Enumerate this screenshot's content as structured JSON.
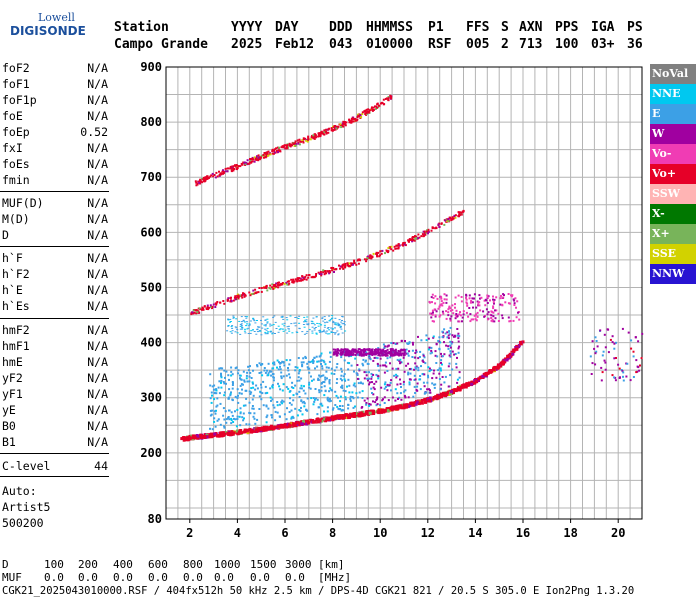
{
  "logo": {
    "line1": "Lowell",
    "line2": "DIGISONDE"
  },
  "header": {
    "labels": [
      "Station",
      "YYYY",
      "DAY",
      "DDD",
      "HHMMSS",
      "P1",
      "FFS",
      "S",
      "AXN",
      "PPS",
      "IGA",
      "PS"
    ],
    "values": [
      "Campo Grande",
      "2025",
      "Feb12",
      "043",
      "010000",
      "RSF",
      "005",
      "2",
      "713",
      "100",
      "03+",
      "36"
    ]
  },
  "params": [
    {
      "name": "foF2",
      "value": "N/A"
    },
    {
      "name": "foF1",
      "value": "N/A"
    },
    {
      "name": "foF1p",
      "value": "N/A"
    },
    {
      "name": "foE",
      "value": "N/A"
    },
    {
      "name": "foEp",
      "value": "0.52"
    },
    {
      "name": "fxI",
      "value": "N/A"
    },
    {
      "name": "foEs",
      "value": "N/A"
    },
    {
      "name": "fmin",
      "value": "N/A"
    },
    {
      "name": "MUF(D)",
      "value": "N/A"
    },
    {
      "name": "M(D)",
      "value": "N/A"
    },
    {
      "name": "D",
      "value": "N/A"
    },
    {
      "name": "h`F",
      "value": "N/A"
    },
    {
      "name": "h`F2",
      "value": "N/A"
    },
    {
      "name": "h`E",
      "value": "N/A"
    },
    {
      "name": "h`Es",
      "value": "N/A"
    },
    {
      "name": "hmF2",
      "value": "N/A"
    },
    {
      "name": "hmF1",
      "value": "N/A"
    },
    {
      "name": "hmE",
      "value": "N/A"
    },
    {
      "name": "yF2",
      "value": "N/A"
    },
    {
      "name": "yF1",
      "value": "N/A"
    },
    {
      "name": "yE",
      "value": "N/A"
    },
    {
      "name": "B0",
      "value": "N/A"
    },
    {
      "name": "B1",
      "value": "N/A"
    },
    {
      "name": "C-level",
      "value": "44"
    }
  ],
  "auto_lines": [
    "Auto:",
    "Artist5",
    "500200"
  ],
  "legend": [
    {
      "label": "NoVal",
      "bg": "#808080",
      "fg": "#ffffff"
    },
    {
      "label": "NNE",
      "bg": "#00c8f0",
      "fg": "#ffffff"
    },
    {
      "label": "E",
      "bg": "#3ca0e6",
      "fg": "#ffffff"
    },
    {
      "label": "W",
      "bg": "#a000a0",
      "fg": "#ffffff"
    },
    {
      "label": "Vo-",
      "bg": "#f03cb4",
      "fg": "#ffffff"
    },
    {
      "label": "Vo+",
      "bg": "#e60028",
      "fg": "#ffffff"
    },
    {
      "label": "SSW",
      "bg": "#ffb4b4",
      "fg": "#ffffff"
    },
    {
      "label": "X-",
      "bg": "#007800",
      "fg": "#ffffff"
    },
    {
      "label": "X+",
      "bg": "#78b45a",
      "fg": "#ffffff"
    },
    {
      "label": "SSE",
      "bg": "#d2d200",
      "fg": "#ffffff"
    },
    {
      "label": "NNW",
      "bg": "#2814d2",
      "fg": "#ffffff"
    }
  ],
  "footer": {
    "d_label": "D",
    "d_values": [
      "100",
      "200",
      "400",
      "600",
      "800",
      "1000",
      "1500",
      "3000",
      "[km]"
    ],
    "muf_label": "MUF",
    "muf_values": [
      "0.0",
      "0.0",
      "0.0",
      "0.0",
      "0.0",
      "0.0",
      "0.0",
      "0.0",
      "[MHz]"
    ],
    "info": "CGK21_2025043010000.RSF / 404fx512h 50 kHz 2.5 km / DPS-4D CGK21 821 / 20.5 S 305.0 E Ion2Png 1.3.20"
  },
  "chart_data": {
    "type": "scatter",
    "xlim": [
      1.0,
      21.0
    ],
    "ylim": [
      80,
      900
    ],
    "x_ticks": [
      2,
      4,
      6,
      8,
      10,
      12,
      14,
      16,
      18,
      20
    ],
    "y_ticks": [
      80,
      200,
      300,
      400,
      500,
      600,
      700,
      800,
      900
    ],
    "grid": true,
    "legend_position": "right",
    "traces": [
      {
        "name": "F-trace (O)",
        "color": "#e60028",
        "points": [
          [
            1.6,
            228
          ],
          [
            2,
            230
          ],
          [
            3,
            235
          ],
          [
            4,
            240
          ],
          [
            5,
            246
          ],
          [
            6,
            252
          ],
          [
            7,
            259
          ],
          [
            8,
            266
          ],
          [
            9,
            272
          ],
          [
            10,
            279
          ],
          [
            11,
            288
          ],
          [
            12,
            299
          ],
          [
            13,
            314
          ],
          [
            14,
            334
          ],
          [
            15,
            362
          ],
          [
            15.5,
            384
          ],
          [
            16,
            410
          ]
        ]
      },
      {
        "name": "2-hop trace",
        "color": "#e60028",
        "points": [
          [
            2,
            455
          ],
          [
            3,
            470
          ],
          [
            4,
            485
          ],
          [
            5,
            498
          ],
          [
            6,
            510
          ],
          [
            7,
            522
          ],
          [
            8,
            534
          ],
          [
            9,
            548
          ],
          [
            10,
            564
          ],
          [
            11,
            582
          ],
          [
            12,
            603
          ],
          [
            13,
            628
          ],
          [
            13.5,
            640
          ]
        ]
      },
      {
        "name": "3-hop trace",
        "color": "#e60028",
        "points": [
          [
            2.2,
            690
          ],
          [
            3,
            705
          ],
          [
            4,
            722
          ],
          [
            5,
            740
          ],
          [
            6,
            757
          ],
          [
            7,
            772
          ],
          [
            8,
            790
          ],
          [
            9,
            810
          ],
          [
            10,
            835
          ],
          [
            10.5,
            850
          ]
        ]
      },
      {
        "name": "Spread echoes E",
        "color": "#3ca0e6",
        "x_range": [
          3,
          16
        ],
        "h_range": [
          235,
          450
        ]
      },
      {
        "name": "Spread echoes W",
        "color": "#a000a0",
        "x_range": [
          8,
          16
        ],
        "h_range": [
          280,
          490
        ]
      },
      {
        "name": "Isolated echoes 19-21 MHz",
        "color": "#a000a0",
        "x_range": [
          18.8,
          21
        ],
        "h_range": [
          330,
          430
        ]
      }
    ]
  }
}
